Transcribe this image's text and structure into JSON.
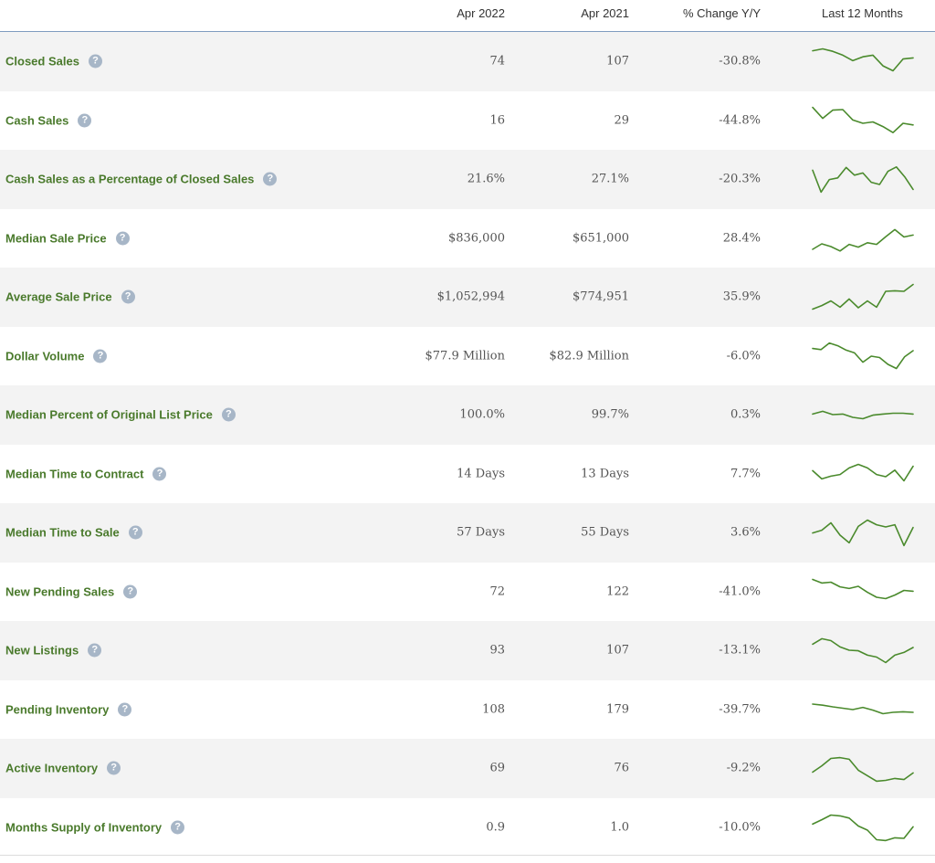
{
  "header": {
    "col_apr2022": "Apr 2022",
    "col_apr2021": "Apr 2021",
    "col_change": "% Change Y/Y",
    "col_spark": "Last 12 Months"
  },
  "help_icon_glyph": "?",
  "accent_color": "#4a7a2c",
  "rows": [
    {
      "label": "Closed Sales",
      "apr2022": "74",
      "apr2021": "107",
      "change": "-30.8%",
      "trend": [
        0.88,
        0.95,
        0.86,
        0.72,
        0.52,
        0.66,
        0.72,
        0.33,
        0.15,
        0.58,
        0.62
      ]
    },
    {
      "label": "Cash Sales",
      "apr2022": "16",
      "apr2021": "29",
      "change": "-44.8%",
      "trend": [
        0.98,
        0.58,
        0.88,
        0.9,
        0.52,
        0.4,
        0.45,
        0.28,
        0.06,
        0.4,
        0.34
      ]
    },
    {
      "label": "Cash Sales as a Percentage of Closed Sales",
      "apr2022": "21.6%",
      "apr2021": "27.1%",
      "change": "-20.3%",
      "trend": [
        0.82,
        0.02,
        0.48,
        0.54,
        0.92,
        0.64,
        0.72,
        0.38,
        0.3,
        0.78,
        0.94,
        0.58,
        0.12
      ]
    },
    {
      "label": "Median Sale Price",
      "apr2022": "$836,000",
      "apr2021": "$651,000",
      "change": "28.4%",
      "trend": [
        0.1,
        0.3,
        0.2,
        0.04,
        0.28,
        0.18,
        0.34,
        0.28,
        0.56,
        0.82,
        0.55,
        0.62
      ]
    },
    {
      "label": "Average Sale Price",
      "apr2022": "$1,052,994",
      "apr2021": "$774,951",
      "change": "35.9%",
      "trend": [
        0.05,
        0.18,
        0.35,
        0.12,
        0.42,
        0.1,
        0.35,
        0.12,
        0.7,
        0.72,
        0.7,
        0.95
      ]
    },
    {
      "label": "Dollar Volume",
      "apr2022": "$77.9 Million",
      "apr2021": "$82.9 Million",
      "change": "-6.0%",
      "trend": [
        0.78,
        0.74,
        0.98,
        0.88,
        0.72,
        0.62,
        0.28,
        0.5,
        0.45,
        0.2,
        0.05,
        0.48,
        0.7
      ]
    },
    {
      "label": "Median Percent of Original List Price",
      "apr2022": "100.0%",
      "apr2021": "99.7%",
      "change": "0.3%",
      "trend": [
        0.52,
        0.62,
        0.5,
        0.52,
        0.4,
        0.35,
        0.48,
        0.52,
        0.55,
        0.55,
        0.52
      ]
    },
    {
      "label": "Median Time to Contract",
      "apr2022": "14 Days",
      "apr2021": "13 Days",
      "change": "7.7%",
      "trend": [
        0.62,
        0.32,
        0.42,
        0.48,
        0.72,
        0.85,
        0.72,
        0.48,
        0.4,
        0.64,
        0.25,
        0.78
      ]
    },
    {
      "label": "Median Time to Sale",
      "apr2022": "57 Days",
      "apr2021": "55 Days",
      "change": "3.6%",
      "trend": [
        0.48,
        0.58,
        0.85,
        0.4,
        0.12,
        0.72,
        0.95,
        0.78,
        0.7,
        0.78,
        0.02,
        0.68
      ]
    },
    {
      "label": "New Pending Sales",
      "apr2022": "72",
      "apr2021": "122",
      "change": "-41.0%",
      "trend": [
        0.95,
        0.82,
        0.85,
        0.68,
        0.62,
        0.7,
        0.48,
        0.3,
        0.25,
        0.38,
        0.55,
        0.52
      ]
    },
    {
      "label": "New Listings",
      "apr2022": "93",
      "apr2021": "107",
      "change": "-13.1%",
      "trend": [
        0.72,
        0.92,
        0.85,
        0.62,
        0.5,
        0.48,
        0.32,
        0.25,
        0.05,
        0.32,
        0.42,
        0.6
      ]
    },
    {
      "label": "Pending Inventory",
      "apr2022": "108",
      "apr2021": "179",
      "change": "-39.7%",
      "trend": [
        0.7,
        0.66,
        0.6,
        0.55,
        0.5,
        0.58,
        0.48,
        0.35,
        0.4,
        0.42,
        0.4
      ]
    },
    {
      "label": "Active Inventory",
      "apr2022": "69",
      "apr2021": "76",
      "change": "-9.2%",
      "trend": [
        0.35,
        0.58,
        0.85,
        0.88,
        0.82,
        0.42,
        0.22,
        0.02,
        0.05,
        0.12,
        0.08,
        0.32
      ]
    },
    {
      "label": "Months Supply of Inventory",
      "apr2022": "0.9",
      "apr2021": "1.0",
      "change": "-10.0%",
      "trend": [
        0.62,
        0.78,
        0.95,
        0.92,
        0.84,
        0.55,
        0.4,
        0.05,
        0.02,
        0.12,
        0.1,
        0.52
      ]
    }
  ]
}
